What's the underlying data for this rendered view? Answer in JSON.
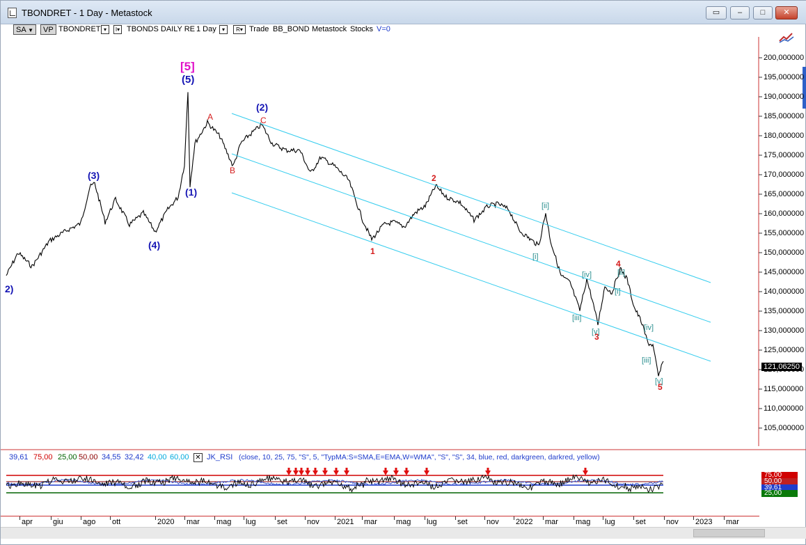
{
  "window": {
    "title": "TBONDRET - 1 Day - Metastock",
    "buttons": {
      "restore_chart": "▭",
      "minimize": "–",
      "maximize": "□",
      "close": "✕"
    }
  },
  "toolbar": {
    "sa": "SA",
    "vp": "VP",
    "symbol": "TBONDRET",
    "security": "TBONDS DAILY RE",
    "period": "1 Day",
    "trade": "Trade",
    "sym2": "BB_BOND",
    "source": "Metastock",
    "kind": "Stocks",
    "v": "V=0",
    "dd_symbol": "▾",
    "dd_security": "I▾",
    "dd_period": "▾",
    "dd_r": "R▾"
  },
  "price_axis": {
    "labels": [
      "200,000000",
      "195,000000",
      "190,000000",
      "185,000000",
      "180,000000",
      "175,000000",
      "170,000000",
      "165,000000",
      "160,000000",
      "155,000000",
      "150,000000",
      "145,000000",
      "140,000000",
      "135,000000",
      "130,000000",
      "125,000000",
      "120,000000",
      "115,000000",
      "110,000000",
      "105,000000"
    ],
    "last_price": "121,06250"
  },
  "wave_labels": {
    "five_major": "[5]",
    "five": "(5)",
    "two_left": "2)",
    "three": "(3)",
    "four": "(4)",
    "one": "(1)",
    "two": "(2)",
    "a": "A",
    "b": "B",
    "c": "C",
    "minor_1": "1",
    "minor_2": "2",
    "minor_3": "3",
    "minor_4": "4",
    "minor_5": "5",
    "ii_1": "[ii]",
    "i_1": "[i]",
    "iv_1": "[iv]",
    "iii_1": "[iii]",
    "v_1": "[v]",
    "ii_2": "[ii]",
    "i_2": "[i]",
    "iv_2": "[iv]",
    "iii_2": "[iii]",
    "v_2": "[v]"
  },
  "indicator": {
    "values": [
      "39,61",
      "75,00",
      "25,00",
      "50,00",
      "34,55",
      "32,42",
      "40,00",
      "60,00"
    ],
    "value_colors": [
      "#1f3ccc",
      "#d00000",
      "#006400",
      "#8b0000",
      "#1f3ccc",
      "#1f3ccc",
      "#00aadd",
      "#00aadd"
    ],
    "close_button": "✕",
    "name": "JK_RSI",
    "params": "(close,  10,  25,  75,  \"S\",  5,  \"TypMA:S=SMA,E=EMA,W=WMA\",  \"S\",  \"S\",  34,  blue,  red,  darkgreen,  darkred,  yellow)",
    "badges": [
      "75,00",
      "50,00",
      "39,61",
      "25,00"
    ]
  },
  "x_axis": {
    "labels": [
      "apr",
      "giu",
      "ago",
      "ott",
      "2020",
      "mar",
      "mag",
      "lug",
      "set",
      "nov",
      "2021",
      "mar",
      "mag",
      "lug",
      "set",
      "nov",
      "2022",
      "mar",
      "mag",
      "lug",
      "set",
      "nov",
      "2023",
      "mar"
    ]
  },
  "colors": {
    "price": "#000000",
    "channel": "#33ccee",
    "wave_blue": "#1414b4",
    "wave_red": "#d41a1a",
    "wave_magenta": "#e010c8",
    "wave_teal": "#2a8f8f",
    "rsi_blue": "#1f3ccc",
    "rsi_red": "#d00000",
    "rsi_green": "#006400",
    "rsi_darkred": "#8b0000"
  }
}
